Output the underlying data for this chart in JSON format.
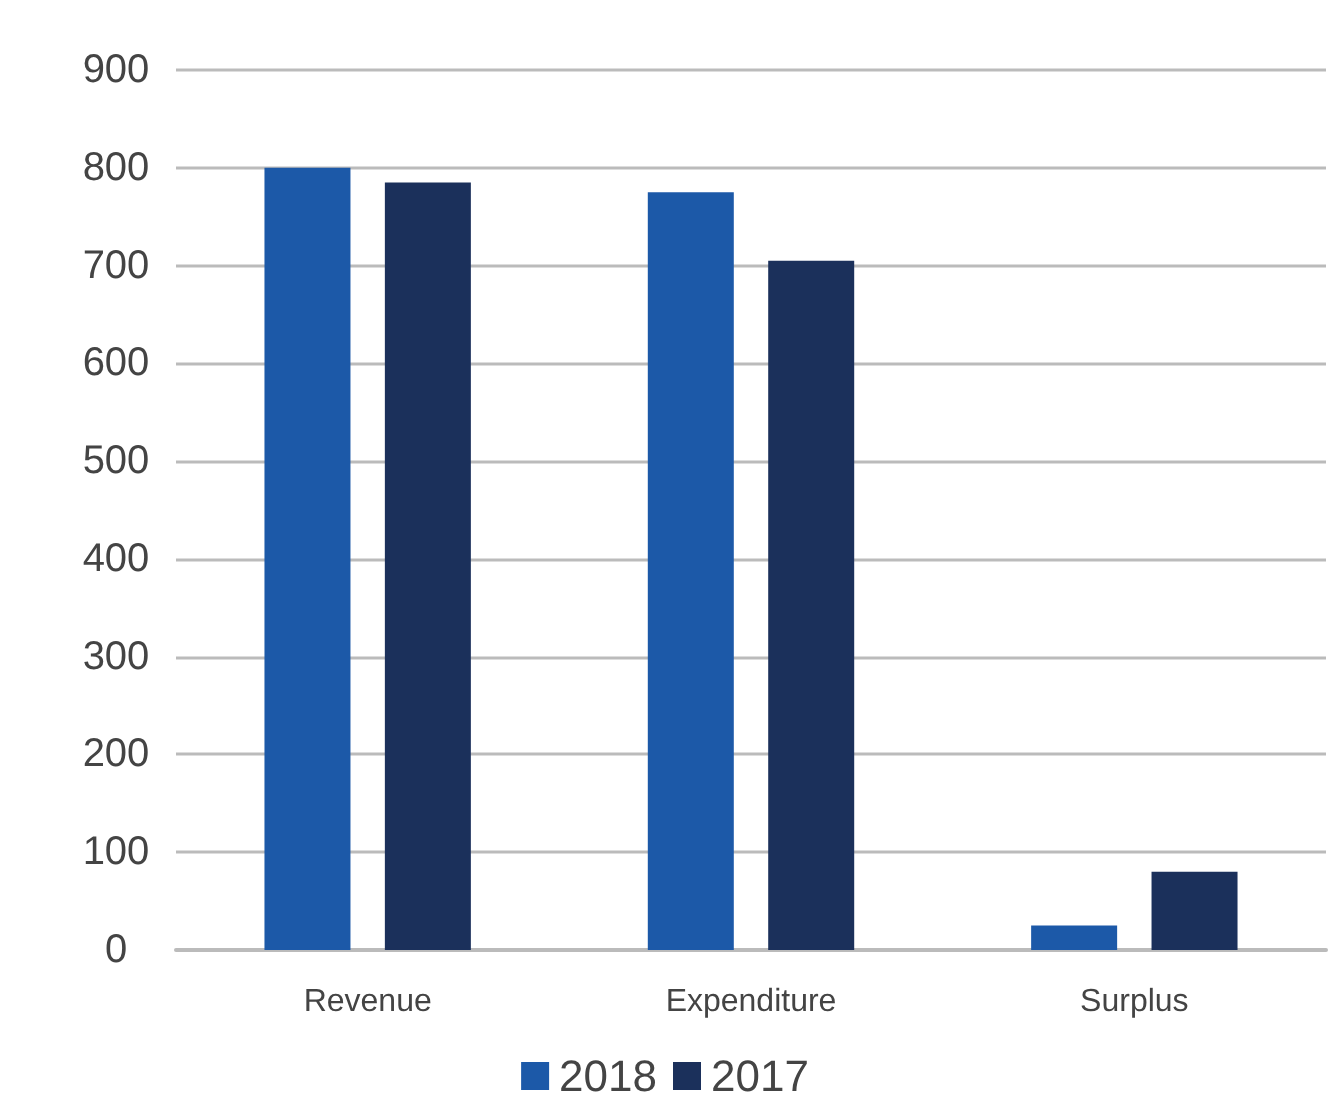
{
  "chart_data": {
    "type": "bar",
    "categories": [
      "Revenue",
      "Expenditure",
      "Surplus"
    ],
    "series": [
      {
        "name": "2018",
        "color": "#1c59a8",
        "values": [
          800,
          775,
          25
        ]
      },
      {
        "name": "2017",
        "color": "#1b305b",
        "values": [
          785,
          705,
          80
        ]
      }
    ],
    "ylim": [
      0,
      900
    ],
    "yticks": [
      0,
      100,
      200,
      300,
      400,
      500,
      600,
      700,
      800,
      900
    ],
    "grid": "y",
    "legend": "bottom"
  }
}
